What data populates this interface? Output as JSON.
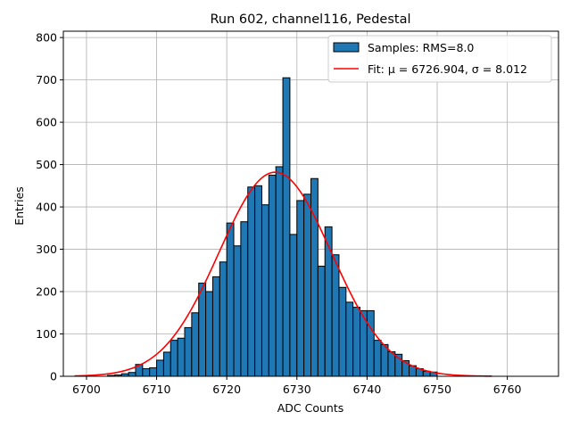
{
  "chart_data": {
    "type": "bar",
    "title": "Run 602, channel116, Pedestal",
    "xlabel": "ADC Counts",
    "ylabel": "Entries",
    "xlim": [
      6696.7,
      6767.3
    ],
    "ylim": [
      0,
      815
    ],
    "grid": true,
    "legend_position": "top-right",
    "colors": {
      "bars": "#1f77b4",
      "bar_edge": "#000000",
      "fit": "#ff0000",
      "grid": "#b0b0b0"
    },
    "x_ticks": [
      6700,
      6710,
      6720,
      6730,
      6740,
      6750,
      6760
    ],
    "x_tick_labels": [
      "6700",
      "6710",
      "6720",
      "6730",
      "6740",
      "6750",
      "6760"
    ],
    "y_ticks": [
      0,
      100,
      200,
      300,
      400,
      500,
      600,
      700,
      800
    ],
    "y_tick_labels": [
      "0",
      "100",
      "200",
      "300",
      "400",
      "500",
      "600",
      "700",
      "800"
    ],
    "histogram": {
      "name": "Samples: RMS=8.0",
      "bin_width": 1,
      "bin_edges_start": 6703,
      "values": [
        2,
        3,
        6,
        9,
        28,
        18,
        20,
        38,
        57,
        85,
        90,
        115,
        150,
        220,
        200,
        235,
        270,
        362,
        308,
        365,
        447,
        450,
        405,
        475,
        495,
        705,
        335,
        415,
        430,
        467,
        260,
        353,
        287,
        210,
        175,
        163,
        155,
        155,
        85,
        75,
        58,
        52,
        37,
        25,
        18,
        12,
        10
      ]
    },
    "fit": {
      "name": "Fit: μ = 6726.904, σ = 8.012",
      "mu": 6726.904,
      "sigma": 8.012,
      "amplitude": 482,
      "x_range": [
        6698.3,
        6757.8
      ]
    }
  }
}
